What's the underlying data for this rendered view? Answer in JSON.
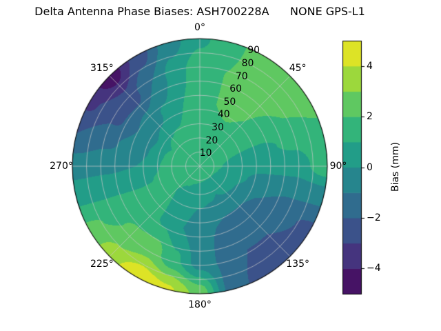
{
  "title": "Delta Antenna Phase Biases: ASH700228A      NONE GPS-L1",
  "chart_data": {
    "type": "heatmap",
    "subtype": "polar-filled-contour",
    "title": "Delta Antenna Phase Biases: ASH700228A      NONE GPS-L1",
    "grid_on": true,
    "legend_position": "right-colorbar",
    "angular_ticks": [
      {
        "deg": 0,
        "label": "0°"
      },
      {
        "deg": 45,
        "label": "45°"
      },
      {
        "deg": 90,
        "label": "90°"
      },
      {
        "deg": 135,
        "label": "135°"
      },
      {
        "deg": 180,
        "label": "180°"
      },
      {
        "deg": 225,
        "label": "225°"
      },
      {
        "deg": 270,
        "label": "270°"
      },
      {
        "deg": 315,
        "label": "315°"
      }
    ],
    "radial_ticks": [
      10,
      20,
      30,
      40,
      50,
      60,
      70,
      80,
      90
    ],
    "radial_axis_max": 90,
    "radial_label_azimuth_deg": 25,
    "colorbar": {
      "label": "Bias (mm)",
      "min": -5,
      "max": 5,
      "level_step": 1,
      "ticks": [
        {
          "value": -4,
          "label": "−4"
        },
        {
          "value": -2,
          "label": "−2"
        },
        {
          "value": 0,
          "label": "0"
        },
        {
          "value": 2,
          "label": "2"
        },
        {
          "value": 4,
          "label": "4"
        }
      ],
      "colormap": "viridis",
      "colormap_stops": [
        "#440154",
        "#482475",
        "#414487",
        "#355f8d",
        "#2a788e",
        "#21918c",
        "#22a884",
        "#44bf70",
        "#7ad151",
        "#bddf26",
        "#fde725"
      ]
    },
    "grid": {
      "azimuth_deg": [
        0,
        15,
        30,
        45,
        60,
        75,
        90,
        105,
        120,
        135,
        150,
        165,
        180,
        195,
        210,
        225,
        240,
        255,
        270,
        285,
        300,
        315,
        330,
        345
      ],
      "zenith_deg": [
        0,
        22.5,
        45,
        67.5,
        90
      ],
      "bias_mm": [
        [
          1.8,
          1.8,
          1.8,
          1.8,
          1.8,
          1.8,
          1.8,
          1.8,
          1.8,
          1.8,
          1.8,
          1.8,
          1.8,
          1.8,
          1.8,
          1.8,
          1.8,
          1.8,
          1.8,
          1.8,
          1.8,
          1.8,
          1.8,
          1.8
        ],
        [
          1.6,
          1.6,
          1.6,
          1.4,
          1.2,
          1.0,
          0.8,
          0.5,
          0.2,
          0.1,
          0.0,
          0.1,
          0.3,
          0.5,
          0.8,
          1.0,
          1.2,
          1.2,
          1.2,
          1.1,
          1.0,
          1.2,
          1.4,
          1.5
        ],
        [
          1.9,
          2.0,
          2.2,
          2.0,
          1.5,
          0.8,
          0.3,
          -0.4,
          -1.0,
          -1.2,
          -1.2,
          -1.0,
          -0.8,
          0.0,
          0.8,
          1.2,
          1.5,
          0.8,
          0.0,
          -0.4,
          -0.8,
          -0.3,
          0.2,
          1.0
        ],
        [
          1.7,
          2.0,
          2.4,
          2.3,
          2.0,
          1.2,
          0.5,
          -0.8,
          -1.8,
          -2.0,
          -2.0,
          -1.2,
          -0.5,
          1.2,
          2.5,
          2.2,
          1.8,
          0.8,
          -0.3,
          -1.2,
          -2.2,
          -2.4,
          -1.0,
          0.5
        ],
        [
          0.8,
          1.6,
          2.6,
          2.5,
          2.2,
          1.8,
          1.6,
          -0.8,
          -2.2,
          -2.4,
          -2.4,
          -1.5,
          2.6,
          4.2,
          4.8,
          3.6,
          2.2,
          0.8,
          -0.5,
          -2.0,
          -3.2,
          -4.6,
          -2.6,
          -0.5
        ]
      ]
    }
  },
  "colors": {
    "background": "#ffffff",
    "grid_line": "#c8c8c8",
    "axis_edge": "#000000",
    "text": "#000000"
  }
}
